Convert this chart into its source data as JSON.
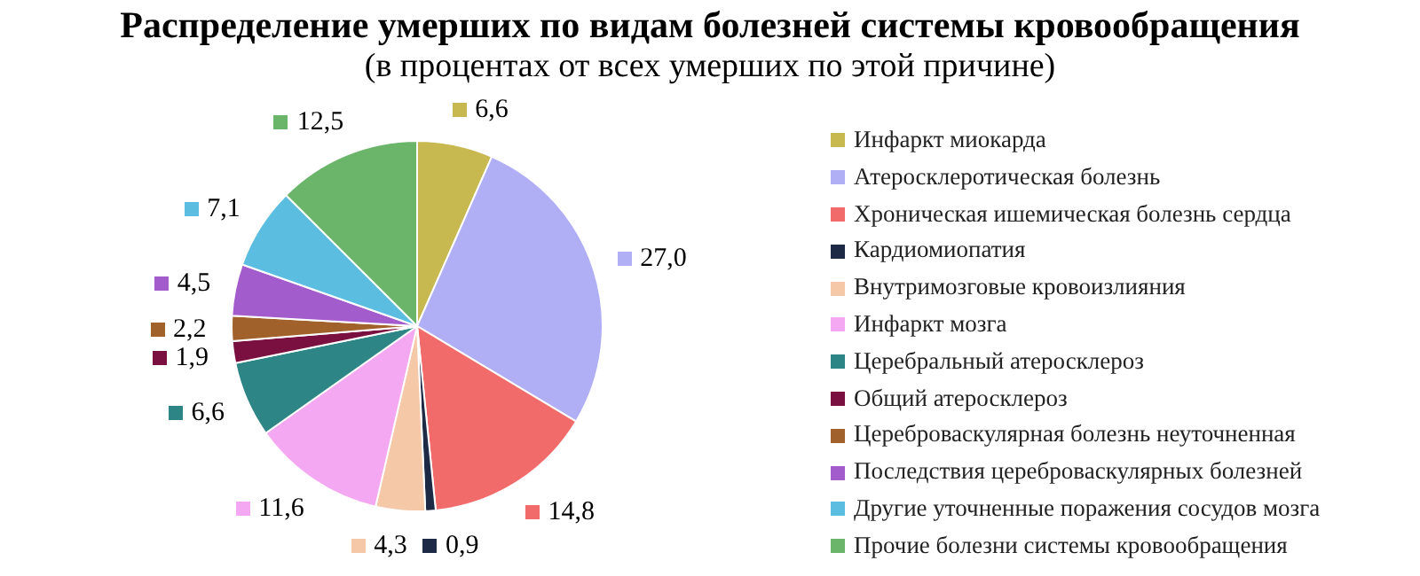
{
  "chart_data": {
    "type": "pie",
    "title": "Распределение умерших по видам болезней системы кровообращения",
    "subtitle": "(в процентах от всех умерших по этой причине)",
    "categories": [
      "Инфаркт миокарда",
      "Атеросклеротическая болезнь",
      "Хроническая ишемическая болезнь сердца",
      "Кардиомиопатия",
      "Внутримозговые кровоизлияния",
      "Инфаркт мозга",
      "Церебральный атеросклероз",
      "Общий атеросклероз",
      "Цереброваскулярная болезнь неуточненная",
      "Последствия цереброваскулярных болезней",
      "Другие уточненные поражения сосудов мозга",
      "Прочие болезни системы кровообращения"
    ],
    "values": [
      6.6,
      27.0,
      14.8,
      0.9,
      4.3,
      11.6,
      6.6,
      1.9,
      2.2,
      4.5,
      7.1,
      12.5
    ],
    "value_labels": [
      "6,6",
      "27,0",
      "14,8",
      "0,9",
      "4,3",
      "11,6",
      "6,6",
      "1,9",
      "2,2",
      "4,5",
      "7,1",
      "12,5"
    ],
    "colors": [
      "#c8b850",
      "#b0aef5",
      "#f26b6b",
      "#1c2a45",
      "#f5c9a8",
      "#f5a8f2",
      "#2e8585",
      "#7a1040",
      "#a0622a",
      "#a35ccc",
      "#5bbde0",
      "#6bb56b"
    ],
    "legend": "right"
  }
}
